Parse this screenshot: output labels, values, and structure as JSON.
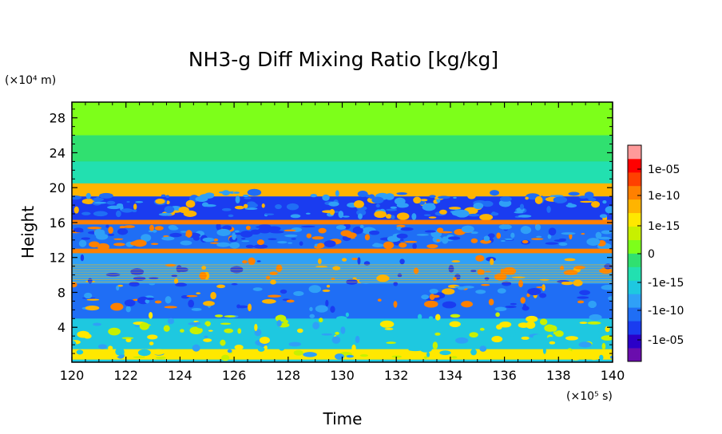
{
  "chart_data": {
    "type": "heatmap",
    "title": "NH3-g Diff Mixing Ratio [kg/kg]",
    "xlabel": "Time",
    "ylabel": "Height",
    "x_unit": "(×10⁵ s)",
    "y_unit": "(×10⁴ m)",
    "xlim": [
      120,
      140
    ],
    "ylim": [
      0,
      29.8
    ],
    "x_ticks": [
      "120",
      "122",
      "124",
      "126",
      "128",
      "130",
      "132",
      "134",
      "136",
      "138",
      "140"
    ],
    "y_ticks": [
      "4",
      "8",
      "12",
      "16",
      "20",
      "24",
      "28"
    ],
    "colorbar": {
      "tick_labels": [
        "1e-05",
        "1e-10",
        "1e-15",
        "0",
        "-1e-15",
        "-1e-10",
        "-1e-05"
      ],
      "colors": [
        "#6a0dad",
        "#2b00c8",
        "#1a3cf0",
        "#1f6ef5",
        "#2fa0f7",
        "#1ec8e0",
        "#22e0b0",
        "#30e070",
        "#7dff1a",
        "#c8f000",
        "#ffe800",
        "#ffb400",
        "#ff8000",
        "#ff4000",
        "#ff0000",
        "#ff9a9a"
      ]
    },
    "layers": [
      {
        "y_from": 0.3,
        "y_to": 1.5,
        "color": "#ffe800"
      },
      {
        "y_from": 1.5,
        "y_to": 5.0,
        "color": "#1ec8e0"
      },
      {
        "y_from": 5.0,
        "y_to": 9.0,
        "color": "#1f6ef5"
      },
      {
        "y_from": 9.0,
        "y_to": 12.5,
        "color": "#2fa0f7"
      },
      {
        "y_from": 12.5,
        "y_to": 13.0,
        "color": "#ff8000"
      },
      {
        "y_from": 13.0,
        "y_to": 15.8,
        "color": "#1f6ef5"
      },
      {
        "y_from": 15.8,
        "y_to": 16.3,
        "color": "#ff8000"
      },
      {
        "y_from": 16.3,
        "y_to": 19.0,
        "color": "#1a3cf0"
      },
      {
        "y_from": 19.0,
        "y_to": 20.5,
        "color": "#ffb400"
      },
      {
        "y_from": 20.5,
        "y_to": 23.0,
        "color": "#22e0b0"
      },
      {
        "y_from": 23.0,
        "y_to": 26.0,
        "color": "#30e070"
      },
      {
        "y_from": 26.0,
        "y_to": 29.8,
        "color": "#7dff1a"
      }
    ]
  }
}
